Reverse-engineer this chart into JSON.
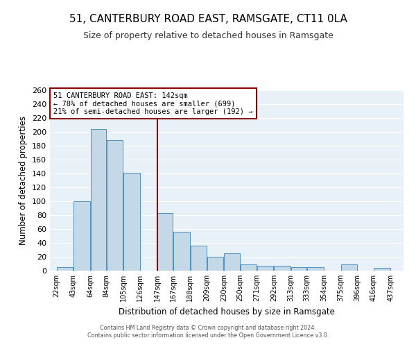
{
  "title": "51, CANTERBURY ROAD EAST, RAMSGATE, CT11 0LA",
  "subtitle": "Size of property relative to detached houses in Ramsgate",
  "xlabel": "Distribution of detached houses by size in Ramsgate",
  "ylabel": "Number of detached properties",
  "bar_left_edges": [
    22,
    43,
    64,
    84,
    105,
    126,
    147,
    167,
    188,
    209,
    230,
    250,
    271,
    292,
    313,
    333,
    354,
    375,
    396,
    416
  ],
  "bar_widths": [
    21,
    21,
    20,
    21,
    21,
    21,
    20,
    21,
    21,
    21,
    20,
    21,
    21,
    21,
    20,
    21,
    21,
    21,
    20,
    21
  ],
  "bar_heights": [
    5,
    100,
    204,
    188,
    141,
    0,
    83,
    56,
    36,
    20,
    25,
    9,
    7,
    7,
    5,
    5,
    0,
    9,
    0,
    4
  ],
  "tick_positions": [
    22,
    43,
    64,
    84,
    105,
    126,
    147,
    167,
    188,
    209,
    230,
    250,
    271,
    292,
    313,
    333,
    354,
    375,
    396,
    416,
    437
  ],
  "tick_labels": [
    "22sqm",
    "43sqm",
    "64sqm",
    "84sqm",
    "105sqm",
    "126sqm",
    "147sqm",
    "167sqm",
    "188sqm",
    "209sqm",
    "230sqm",
    "250sqm",
    "271sqm",
    "292sqm",
    "313sqm",
    "333sqm",
    "354sqm",
    "375sqm",
    "396sqm",
    "416sqm",
    "437sqm"
  ],
  "ylim": [
    0,
    260
  ],
  "yticks": [
    0,
    20,
    40,
    60,
    80,
    100,
    120,
    140,
    160,
    180,
    200,
    220,
    240,
    260
  ],
  "bar_color": "#c5d8e8",
  "bar_edge_color": "#4a90c4",
  "vline_x": 147,
  "vline_color": "#8b0000",
  "annotation_text": "51 CANTERBURY ROAD EAST: 142sqm\n← 78% of detached houses are smaller (699)\n21% of semi-detached houses are larger (192) →",
  "annotation_box_color": "#8b0000",
  "bg_color": "#e8f0f8",
  "footer_line1": "Contains HM Land Registry data © Crown copyright and database right 2024.",
  "footer_line2": "Contains public sector information licensed under the Open Government Licence v3.0.",
  "title_fontsize": 11,
  "subtitle_fontsize": 9
}
